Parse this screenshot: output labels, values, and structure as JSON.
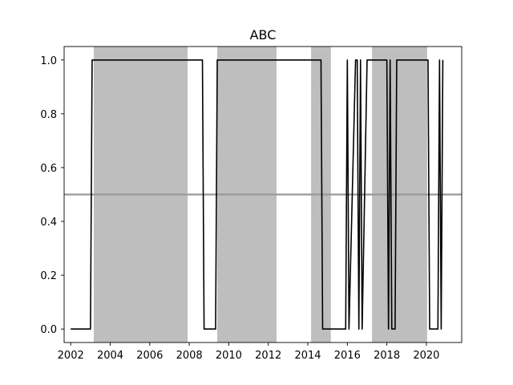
{
  "chart_data": {
    "type": "line",
    "title": "ABC",
    "xlabel": "",
    "ylabel": "",
    "xlim": [
      "2001-09-01",
      "2021-10-15"
    ],
    "ylim": [
      -0.05,
      1.05
    ],
    "x_ticks": [
      "2002",
      "2004",
      "2006",
      "2008",
      "2010",
      "2012",
      "2014",
      "2016",
      "2018",
      "2020"
    ],
    "y_ticks": [
      "0.0",
      "0.2",
      "0.4",
      "0.6",
      "0.8",
      "1.0"
    ],
    "grid": false,
    "legend": "none",
    "reference_line": {
      "y": 0.5,
      "color": "#999999"
    },
    "shaded_periods": [
      {
        "start": "2003-03-01",
        "end": "2007-12-01"
      },
      {
        "start": "2009-06-01",
        "end": "2012-06-01"
      },
      {
        "start": "2014-03-01",
        "end": "2015-03-01"
      },
      {
        "start": "2017-04-01",
        "end": "2020-01-15"
      }
    ],
    "series": [
      {
        "color": "#000000",
        "x": [
          "2002-01-01",
          "2003-01-01",
          "2003-02-01",
          "2008-09-01",
          "2008-10-01",
          "2009-05-01",
          "2009-06-01",
          "2014-09-01",
          "2014-10-01",
          "2015-12-01",
          "2016-01-01",
          "2016-02-01",
          "2016-06-01",
          "2016-07-01",
          "2016-08-01",
          "2016-09-01",
          "2016-10-01",
          "2017-01-01",
          "2017-02-01",
          "2018-01-01",
          "2018-02-01",
          "2018-03-01",
          "2018-04-01",
          "2018-06-01",
          "2018-07-01",
          "2020-02-01",
          "2020-03-01",
          "2020-08-01",
          "2020-09-01",
          "2020-10-01",
          "2020-11-01"
        ],
        "values": [
          0,
          0,
          1,
          1,
          0,
          0,
          1,
          1,
          0,
          0,
          1,
          0,
          1,
          1,
          0,
          1,
          0,
          1,
          1,
          1,
          0,
          1,
          0,
          0,
          1,
          1,
          0,
          0,
          1,
          0,
          1
        ]
      }
    ]
  }
}
